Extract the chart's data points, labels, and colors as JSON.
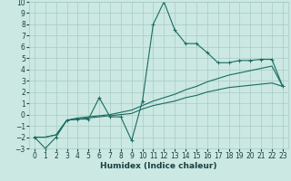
{
  "xlabel": "Humidex (Indice chaleur)",
  "xlim": [
    -0.5,
    23.5
  ],
  "ylim": [
    -3,
    10
  ],
  "xticks": [
    0,
    1,
    2,
    3,
    4,
    5,
    6,
    7,
    8,
    9,
    10,
    11,
    12,
    13,
    14,
    15,
    16,
    17,
    18,
    19,
    20,
    21,
    22,
    23
  ],
  "yticks": [
    -3,
    -2,
    -1,
    0,
    1,
    2,
    3,
    4,
    5,
    6,
    7,
    8,
    9,
    10
  ],
  "bg_color": "#cbe8e3",
  "grid_color": "#a8cac5",
  "line_color": "#1a6b60",
  "line1_x": [
    0,
    1,
    2,
    3,
    4,
    5,
    6,
    7,
    8,
    9,
    10,
    11,
    12,
    13,
    14,
    15,
    16,
    17,
    18,
    19,
    20,
    21,
    22,
    23
  ],
  "line1_y": [
    -2.0,
    -3.0,
    -2.0,
    -0.5,
    -0.4,
    -0.4,
    1.5,
    -0.2,
    -0.2,
    -2.3,
    1.2,
    8.0,
    10.0,
    7.5,
    6.3,
    6.3,
    5.5,
    4.6,
    4.6,
    4.8,
    4.8,
    4.9,
    4.9,
    2.5
  ],
  "line2_x": [
    0,
    1,
    2,
    3,
    4,
    5,
    6,
    7,
    8,
    9,
    10,
    11,
    12,
    13,
    14,
    15,
    16,
    17,
    18,
    19,
    20,
    21,
    22,
    23
  ],
  "line2_y": [
    -2.0,
    -2.0,
    -1.8,
    -0.5,
    -0.4,
    -0.3,
    -0.2,
    -0.1,
    0.0,
    0.1,
    0.5,
    0.8,
    1.0,
    1.2,
    1.5,
    1.7,
    2.0,
    2.2,
    2.4,
    2.5,
    2.6,
    2.7,
    2.8,
    2.5
  ],
  "line3_x": [
    0,
    1,
    2,
    3,
    4,
    5,
    6,
    7,
    8,
    9,
    10,
    11,
    12,
    13,
    14,
    15,
    16,
    17,
    18,
    19,
    20,
    21,
    22,
    23
  ],
  "line3_y": [
    -2.0,
    -2.0,
    -1.8,
    -0.5,
    -0.3,
    -0.2,
    -0.1,
    0.0,
    0.2,
    0.4,
    0.8,
    1.2,
    1.5,
    1.8,
    2.2,
    2.5,
    2.9,
    3.2,
    3.5,
    3.7,
    3.9,
    4.1,
    4.3,
    2.5
  ]
}
